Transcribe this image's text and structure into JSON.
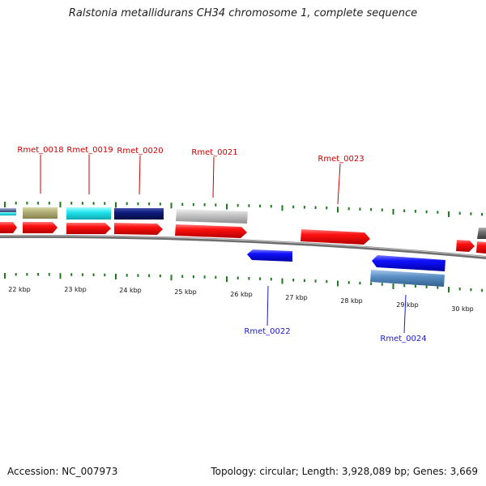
{
  "title": "Ralstonia metallidurans CH34 chromosome 1, complete sequence",
  "accession": "Accession: NC_007973",
  "summary": "Topology: circular; Length: 3,928,089 bp; Genes: 3,669",
  "colors": {
    "backbone": "#7a7a7a",
    "tick": "#1e7a1e",
    "forward_label": "#cc0000",
    "reverse_label": "#1a1acc",
    "cds_forward": "#ff1a1a",
    "cds_reverse": "#1a1aff"
  },
  "kbp_labels": [
    "22 kbp",
    "23 kbp",
    "24 kbp",
    "25 kbp",
    "26 kbp",
    "27 kbp",
    "28 kbp",
    "29 kbp",
    "30 kbp"
  ],
  "gene_labels": {
    "rmet_0018": "Rmet_0018",
    "rmet_0019": "Rmet_0019",
    "rmet_0020": "Rmet_0020",
    "rmet_0021": "Rmet_0021",
    "rmet_0022": "Rmet_0022",
    "rmet_0023": "Rmet_0023",
    "rmet_0024": "Rmet_0024"
  },
  "feature_colors": {
    "olive": "#b3b07a",
    "cyan": "#22e6ee",
    "navy": "#0c1a7a",
    "silver": "#c8c8c8",
    "steel": "#5b8fc4",
    "slate": "#6a7aa8",
    "dark_grey": "#707070"
  }
}
